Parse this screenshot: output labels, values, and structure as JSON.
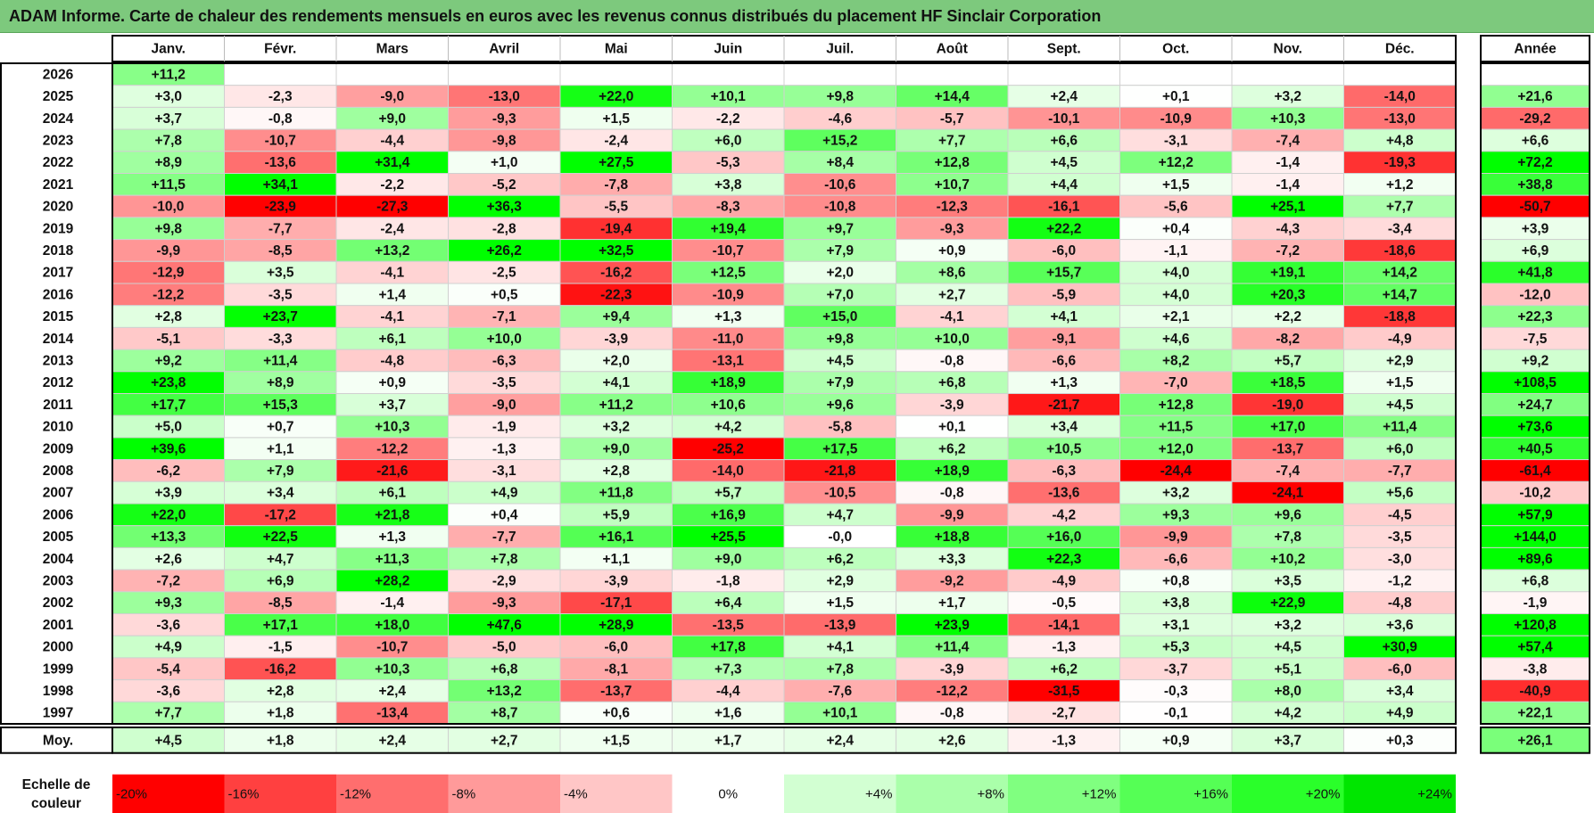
{
  "title": "ADAM Informe. Carte de chaleur des rendements mensuels en euros avec les revenus connus distribués du placement HF Sinclair Corporation",
  "chart_data": {
    "type": "heatmap",
    "months": [
      "Janv.",
      "Févr.",
      "Mars",
      "Avril",
      "Mai",
      "Juin",
      "Juil.",
      "Août",
      "Sept.",
      "Oct.",
      "Nov.",
      "Déc."
    ],
    "year_header": "Année",
    "rows": [
      {
        "year": "2026",
        "values": [
          "+11,2",
          "",
          "",
          "",
          "",
          "",
          "",
          "",
          "",
          "",
          "",
          ""
        ],
        "annual": ""
      },
      {
        "year": "2025",
        "values": [
          "+3,0",
          "-2,3",
          "-9,0",
          "-13,0",
          "+22,0",
          "+10,1",
          "+9,8",
          "+14,4",
          "+2,4",
          "+0,1",
          "+3,2",
          "-14,0"
        ],
        "annual": "+21,6"
      },
      {
        "year": "2024",
        "values": [
          "+3,7",
          "-0,8",
          "+9,0",
          "-9,3",
          "+1,5",
          "-2,2",
          "-4,6",
          "-5,7",
          "-10,1",
          "-10,9",
          "+10,3",
          "-13,0"
        ],
        "annual": "-29,2"
      },
      {
        "year": "2023",
        "values": [
          "+7,8",
          "-10,7",
          "-4,4",
          "-9,8",
          "-2,4",
          "+6,0",
          "+15,2",
          "+7,7",
          "+6,6",
          "-3,1",
          "-7,4",
          "+4,8"
        ],
        "annual": "+6,6"
      },
      {
        "year": "2022",
        "values": [
          "+8,9",
          "-13,6",
          "+31,4",
          "+1,0",
          "+27,5",
          "-5,3",
          "+8,4",
          "+12,8",
          "+4,5",
          "+12,2",
          "-1,4",
          "-19,3"
        ],
        "annual": "+72,2"
      },
      {
        "year": "2021",
        "values": [
          "+11,5",
          "+34,1",
          "-2,2",
          "-5,2",
          "-7,8",
          "+3,8",
          "-10,6",
          "+10,7",
          "+4,4",
          "+1,5",
          "-1,4",
          "+1,2"
        ],
        "annual": "+38,8"
      },
      {
        "year": "2020",
        "values": [
          "-10,0",
          "-23,9",
          "-27,3",
          "+36,3",
          "-5,5",
          "-8,3",
          "-10,8",
          "-12,3",
          "-16,1",
          "-5,6",
          "+25,1",
          "+7,7"
        ],
        "annual": "-50,7"
      },
      {
        "year": "2019",
        "values": [
          "+9,8",
          "-7,7",
          "-2,4",
          "-2,8",
          "-19,4",
          "+19,4",
          "+9,7",
          "-9,3",
          "+22,2",
          "+0,4",
          "-4,3",
          "-3,4"
        ],
        "annual": "+3,9"
      },
      {
        "year": "2018",
        "values": [
          "-9,9",
          "-8,5",
          "+13,2",
          "+26,2",
          "+32,5",
          "-10,7",
          "+7,9",
          "+0,9",
          "-6,0",
          "-1,1",
          "-7,2",
          "-18,6"
        ],
        "annual": "+6,9"
      },
      {
        "year": "2017",
        "values": [
          "-12,9",
          "+3,5",
          "-4,1",
          "-2,5",
          "-16,2",
          "+12,5",
          "+2,0",
          "+8,6",
          "+15,7",
          "+4,0",
          "+19,1",
          "+14,2"
        ],
        "annual": "+41,8"
      },
      {
        "year": "2016",
        "values": [
          "-12,2",
          "-3,5",
          "+1,4",
          "+0,5",
          "-22,3",
          "-10,9",
          "+7,0",
          "+2,7",
          "-5,9",
          "+4,0",
          "+20,3",
          "+14,7"
        ],
        "annual": "-12,0"
      },
      {
        "year": "2015",
        "values": [
          "+2,8",
          "+23,7",
          "-4,1",
          "-7,1",
          "+9,4",
          "+1,3",
          "+15,0",
          "-4,1",
          "+4,1",
          "+2,1",
          "+2,2",
          "-18,8"
        ],
        "annual": "+22,3"
      },
      {
        "year": "2014",
        "values": [
          "-5,1",
          "-3,3",
          "+6,1",
          "+10,0",
          "-3,9",
          "-11,0",
          "+9,8",
          "+10,0",
          "-9,1",
          "+4,6",
          "-8,2",
          "-4,9"
        ],
        "annual": "-7,5"
      },
      {
        "year": "2013",
        "values": [
          "+9,2",
          "+11,4",
          "-4,8",
          "-6,3",
          "+2,0",
          "-13,1",
          "+4,5",
          "-0,8",
          "-6,6",
          "+8,2",
          "+5,7",
          "+2,9"
        ],
        "annual": "+9,2"
      },
      {
        "year": "2012",
        "values": [
          "+23,8",
          "+8,9",
          "+0,9",
          "-3,5",
          "+4,1",
          "+18,9",
          "+7,9",
          "+6,8",
          "+1,3",
          "-7,0",
          "+18,5",
          "+1,5"
        ],
        "annual": "+108,5"
      },
      {
        "year": "2011",
        "values": [
          "+17,7",
          "+15,3",
          "+3,7",
          "-9,0",
          "+11,2",
          "+10,6",
          "+9,6",
          "-3,9",
          "-21,7",
          "+12,8",
          "-19,0",
          "+4,5"
        ],
        "annual": "+24,7"
      },
      {
        "year": "2010",
        "values": [
          "+5,0",
          "+0,7",
          "+10,3",
          "-1,9",
          "+3,2",
          "+4,2",
          "-5,8",
          "+0,1",
          "+3,4",
          "+11,5",
          "+17,0",
          "+11,4"
        ],
        "annual": "+73,6"
      },
      {
        "year": "2009",
        "values": [
          "+39,6",
          "+1,1",
          "-12,2",
          "-1,3",
          "+9,0",
          "-25,2",
          "+17,5",
          "+6,2",
          "+10,5",
          "+12,0",
          "-13,7",
          "+6,0"
        ],
        "annual": "+40,5"
      },
      {
        "year": "2008",
        "values": [
          "-6,2",
          "+7,9",
          "-21,6",
          "-3,1",
          "+2,8",
          "-14,0",
          "-21,8",
          "+18,9",
          "-6,3",
          "-24,4",
          "-7,4",
          "-7,7"
        ],
        "annual": "-61,4"
      },
      {
        "year": "2007",
        "values": [
          "+3,9",
          "+3,4",
          "+6,1",
          "+4,9",
          "+11,8",
          "+5,7",
          "-10,5",
          "-0,8",
          "-13,6",
          "+3,2",
          "-24,1",
          "+5,6"
        ],
        "annual": "-10,2"
      },
      {
        "year": "2006",
        "values": [
          "+22,0",
          "-17,2",
          "+21,8",
          "+0,4",
          "+5,9",
          "+16,9",
          "+4,7",
          "-9,9",
          "-4,2",
          "+9,3",
          "+9,6",
          "-4,5"
        ],
        "annual": "+57,9"
      },
      {
        "year": "2005",
        "values": [
          "+13,3",
          "+22,5",
          "+1,3",
          "-7,7",
          "+16,1",
          "+25,5",
          "-0,0",
          "+18,8",
          "+16,0",
          "-9,9",
          "+7,8",
          "-3,5"
        ],
        "annual": "+144,0"
      },
      {
        "year": "2004",
        "values": [
          "+2,6",
          "+4,7",
          "+11,3",
          "+7,8",
          "+1,1",
          "+9,0",
          "+6,2",
          "+3,3",
          "+22,3",
          "-6,6",
          "+10,2",
          "-3,0"
        ],
        "annual": "+89,6"
      },
      {
        "year": "2003",
        "values": [
          "-7,2",
          "+6,9",
          "+28,2",
          "-2,9",
          "-3,9",
          "-1,8",
          "+2,9",
          "-9,2",
          "-4,9",
          "+0,8",
          "+3,5",
          "-1,2"
        ],
        "annual": "+6,8"
      },
      {
        "year": "2002",
        "values": [
          "+9,3",
          "-8,5",
          "-1,4",
          "-9,3",
          "-17,1",
          "+6,4",
          "+1,5",
          "+1,7",
          "-0,5",
          "+3,8",
          "+22,9",
          "-4,8"
        ],
        "annual": "-1,9"
      },
      {
        "year": "2001",
        "values": [
          "-3,6",
          "+17,1",
          "+18,0",
          "+47,6",
          "+28,9",
          "-13,5",
          "-13,9",
          "+23,9",
          "-14,1",
          "+3,1",
          "+3,2",
          "+3,6"
        ],
        "annual": "+120,8"
      },
      {
        "year": "2000",
        "values": [
          "+4,9",
          "-1,5",
          "-10,7",
          "-5,0",
          "-6,0",
          "+17,8",
          "+4,1",
          "+11,4",
          "-1,3",
          "+5,3",
          "+4,5",
          "+30,9"
        ],
        "annual": "+57,4"
      },
      {
        "year": "1999",
        "values": [
          "-5,4",
          "-16,2",
          "+10,3",
          "+6,8",
          "-8,1",
          "+7,3",
          "+7,8",
          "-3,9",
          "+6,2",
          "-3,7",
          "+5,1",
          "-6,0"
        ],
        "annual": "-3,8"
      },
      {
        "year": "1998",
        "values": [
          "-3,6",
          "+2,8",
          "+2,4",
          "+13,2",
          "-13,7",
          "-4,4",
          "-7,6",
          "-12,2",
          "-31,5",
          "-0,3",
          "+8,0",
          "+3,4"
        ],
        "annual": "-40,9"
      },
      {
        "year": "1997",
        "values": [
          "+7,7",
          "+1,8",
          "-13,4",
          "+8,7",
          "+0,6",
          "+1,6",
          "+10,1",
          "-0,8",
          "-2,7",
          "-0,1",
          "+4,2",
          "+4,9"
        ],
        "annual": "+22,1"
      }
    ],
    "average": {
      "label": "Moy.",
      "values": [
        "+4,5",
        "+1,8",
        "+2,4",
        "+2,7",
        "+1,5",
        "+1,7",
        "+2,4",
        "+2,6",
        "-1,3",
        "+0,9",
        "+3,7",
        "+0,3"
      ],
      "annual": "+26,1"
    },
    "color_scale": {
      "label_line1": "Echelle de",
      "label_line2": "couleur",
      "stops": [
        "-20%",
        "-16%",
        "-12%",
        "-8%",
        "-4%",
        "0%",
        "+4%",
        "+8%",
        "+12%",
        "+16%",
        "+20%",
        "+24%"
      ],
      "stop_values": [
        -20,
        -16,
        -12,
        -8,
        -4,
        0,
        4,
        8,
        12,
        16,
        20,
        24
      ],
      "colors": [
        "#ff0000",
        "#ff4040",
        "#ff6e6e",
        "#ff9a9a",
        "#ffc6c6",
        "#ffffff",
        "#d2ffd2",
        "#aaffaa",
        "#80ff80",
        "#55ff55",
        "#2aff2a",
        "#00e600"
      ]
    },
    "colors": {
      "negative_max": "#ff0000",
      "positive_max": "#00ff00",
      "neutral": "#ffffff",
      "title_bar": "#7dc97d"
    }
  }
}
